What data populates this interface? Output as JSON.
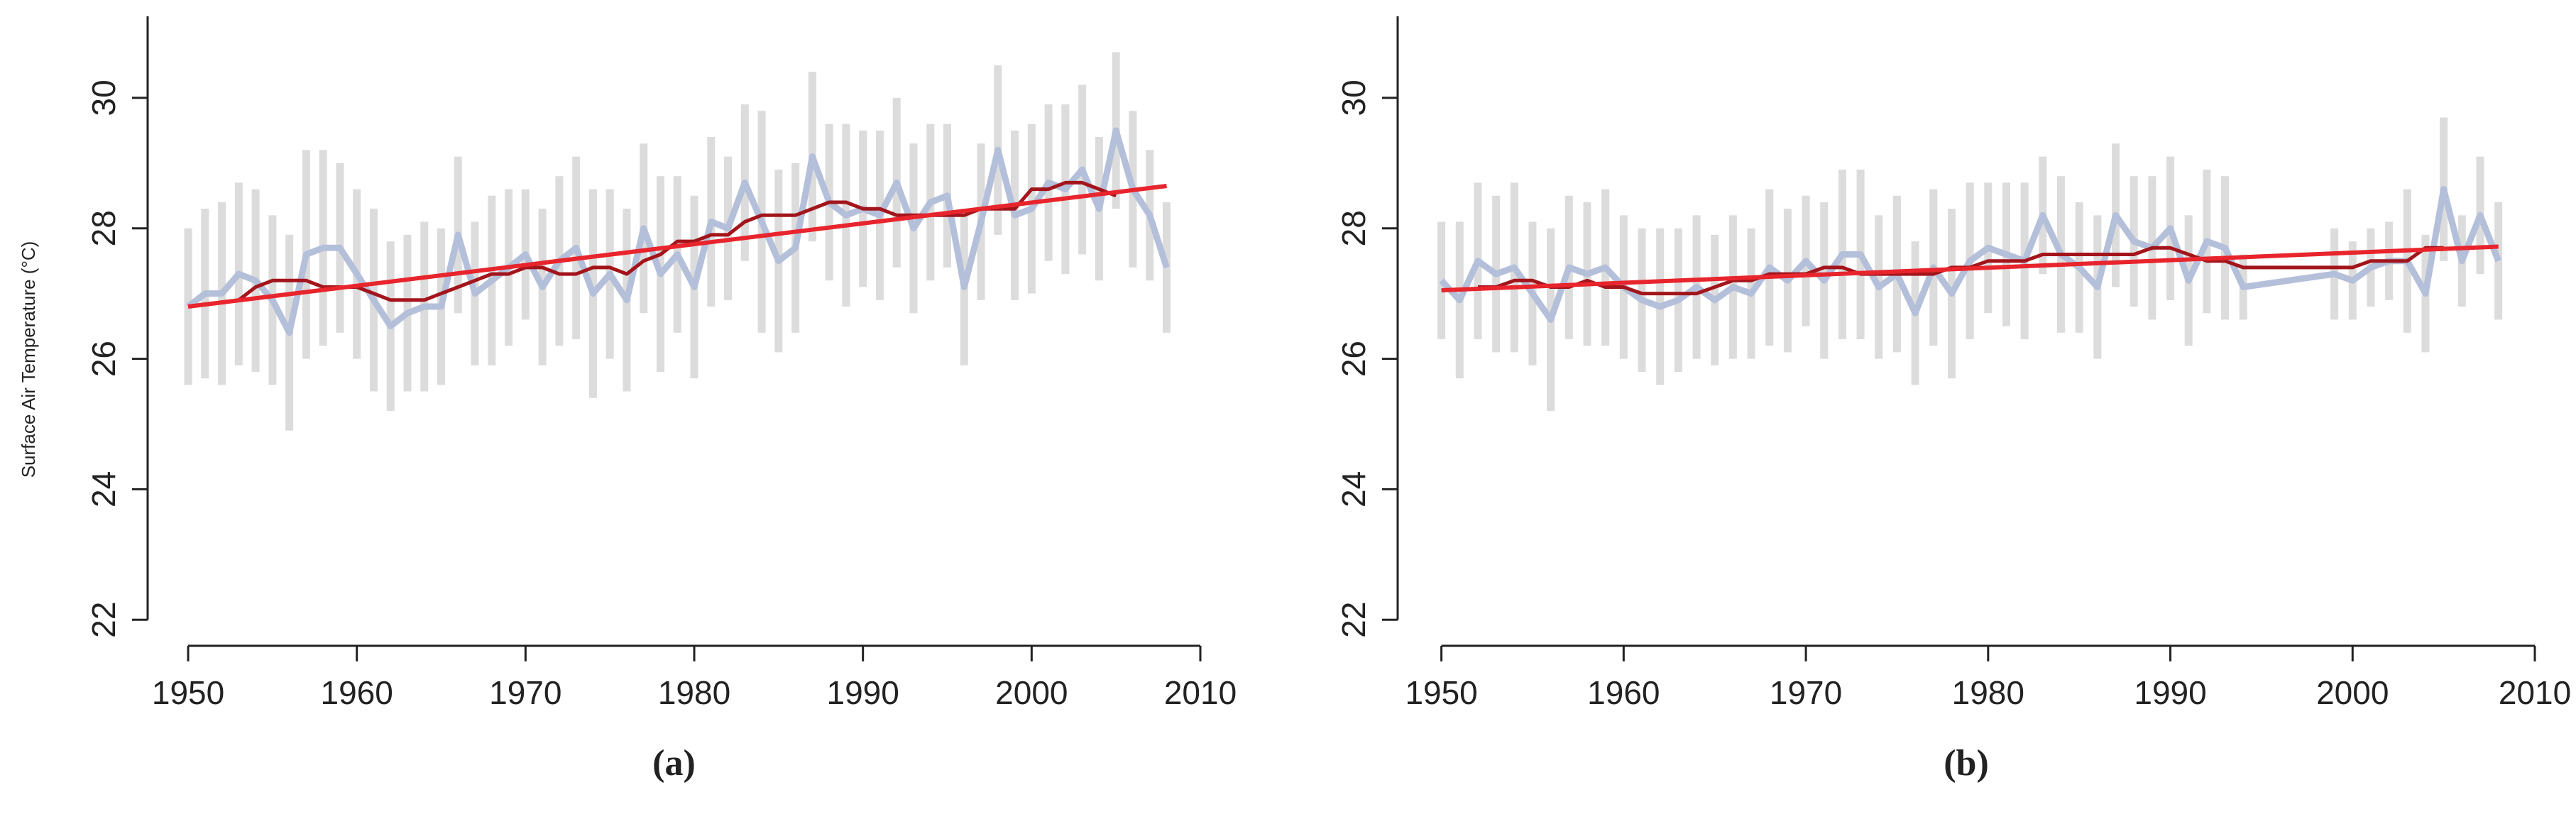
{
  "chart_data": [
    {
      "type": "line",
      "caption": "(a)",
      "ylabel": "Surface Air Temperature (°C)",
      "xlim": [
        1947.6,
        2010
      ],
      "ylim": [
        21.6,
        31.25
      ],
      "xticks": [
        1950,
        1960,
        1970,
        1980,
        1990,
        2000,
        2010
      ],
      "yticks": [
        22,
        24,
        26,
        28,
        30
      ],
      "x": [
        1950,
        1951,
        1952,
        1953,
        1954,
        1955,
        1956,
        1957,
        1958,
        1959,
        1960,
        1961,
        1962,
        1963,
        1964,
        1965,
        1966,
        1967,
        1968,
        1969,
        1970,
        1971,
        1972,
        1973,
        1974,
        1975,
        1976,
        1977,
        1978,
        1979,
        1980,
        1981,
        1982,
        1983,
        1984,
        1985,
        1986,
        1987,
        1988,
        1989,
        1990,
        1991,
        1992,
        1993,
        1994,
        1995,
        1996,
        1997,
        1998,
        1999,
        2000,
        2001,
        2002,
        2003,
        2004,
        2005,
        2006,
        2007,
        2008
      ],
      "series": [
        {
          "color": "#b4bfda",
          "error_color": "#dcdcdc",
          "values": [
            26.8,
            27.0,
            27.0,
            27.3,
            27.2,
            26.9,
            26.4,
            27.6,
            27.7,
            27.7,
            27.3,
            26.9,
            26.5,
            26.7,
            26.8,
            26.8,
            27.9,
            27.0,
            27.2,
            27.4,
            27.6,
            27.1,
            27.5,
            27.7,
            27.0,
            27.3,
            26.9,
            28.0,
            27.3,
            27.6,
            27.1,
            28.1,
            28.0,
            28.7,
            28.1,
            27.5,
            27.7,
            29.1,
            28.4,
            28.2,
            28.3,
            28.2,
            28.7,
            28.0,
            28.4,
            28.5,
            27.1,
            28.1,
            29.2,
            28.2,
            28.3,
            28.7,
            28.6,
            28.9,
            28.3,
            29.5,
            28.6,
            28.2,
            27.4
          ],
          "errors": [
            1.2,
            1.3,
            1.4,
            1.4,
            1.4,
            1.3,
            1.5,
            1.6,
            1.5,
            1.3,
            1.3,
            1.4,
            1.3,
            1.2,
            1.3,
            1.2,
            1.2,
            1.1,
            1.3,
            1.2,
            1.0,
            1.2,
            1.3,
            1.4,
            1.6,
            1.3,
            1.4,
            1.3,
            1.5,
            1.2,
            1.4,
            1.3,
            1.1,
            1.2,
            1.7,
            1.4,
            1.3,
            1.3,
            1.2,
            1.4,
            1.2,
            1.3,
            1.3,
            1.3,
            1.2,
            1.1,
            1.2,
            1.2,
            1.3,
            1.3,
            1.3,
            1.2,
            1.3,
            1.3,
            1.1,
            1.2,
            1.2,
            1.0,
            1.0
          ]
        },
        {
          "color": "#a3151b",
          "values": [
            null,
            null,
            null,
            26.9,
            27.1,
            27.2,
            27.2,
            27.2,
            27.1,
            27.1,
            27.1,
            27.0,
            26.9,
            26.9,
            26.9,
            27.0,
            27.1,
            27.2,
            27.3,
            27.3,
            27.4,
            27.4,
            27.3,
            27.3,
            27.4,
            27.4,
            27.3,
            27.5,
            27.6,
            27.8,
            27.8,
            27.9,
            27.9,
            28.1,
            28.2,
            28.2,
            28.2,
            28.3,
            28.4,
            28.4,
            28.3,
            28.3,
            28.2,
            28.2,
            28.2,
            28.2,
            28.2,
            28.3,
            28.3,
            28.3,
            28.6,
            28.6,
            28.7,
            28.7,
            28.6,
            28.5,
            null,
            null,
            null
          ]
        },
        {
          "color": "#e8242c",
          "x": [
            1950,
            2008
          ],
          "values": [
            26.8,
            28.65
          ]
        }
      ]
    },
    {
      "type": "line",
      "caption": "(b)",
      "xlim": [
        1947.6,
        2010
      ],
      "ylim": [
        21.6,
        31.25
      ],
      "xticks": [
        1950,
        1960,
        1970,
        1980,
        1990,
        2000,
        2010
      ],
      "yticks": [
        22,
        24,
        26,
        28,
        30
      ],
      "x": [
        1950,
        1951,
        1952,
        1953,
        1954,
        1955,
        1956,
        1957,
        1958,
        1959,
        1960,
        1961,
        1962,
        1963,
        1964,
        1965,
        1966,
        1967,
        1968,
        1969,
        1970,
        1971,
        1972,
        1973,
        1974,
        1975,
        1976,
        1977,
        1978,
        1979,
        1980,
        1981,
        1982,
        1983,
        1984,
        1985,
        1986,
        1987,
        1988,
        1989,
        1990,
        1991,
        1992,
        1993,
        1994,
        1999,
        2000,
        2001,
        2002,
        2003,
        2004,
        2005,
        2006,
        2007,
        2008
      ],
      "series": [
        {
          "color": "#b4bfda",
          "error_color": "#dcdcdc",
          "values": [
            27.2,
            26.9,
            27.5,
            27.3,
            27.4,
            27.0,
            26.6,
            27.4,
            27.3,
            27.4,
            27.1,
            26.9,
            26.8,
            26.9,
            27.1,
            26.9,
            27.1,
            27.0,
            27.4,
            27.2,
            27.5,
            27.2,
            27.6,
            27.6,
            27.1,
            27.3,
            26.7,
            27.4,
            27.0,
            27.5,
            27.7,
            27.6,
            27.5,
            28.2,
            27.6,
            27.4,
            27.1,
            28.2,
            27.8,
            27.7,
            28.0,
            27.2,
            27.8,
            27.7,
            27.1,
            27.3,
            27.2,
            27.4,
            27.5,
            27.5,
            27.0,
            28.6,
            27.5,
            28.2,
            27.5
          ],
          "errors": [
            0.9,
            1.2,
            1.2,
            1.2,
            1.3,
            1.1,
            1.4,
            1.1,
            1.1,
            1.2,
            1.1,
            1.1,
            1.2,
            1.1,
            1.1,
            1.0,
            1.1,
            1.0,
            1.2,
            1.1,
            1.0,
            1.2,
            1.3,
            1.3,
            1.1,
            1.2,
            1.1,
            1.2,
            1.3,
            1.2,
            1.0,
            1.1,
            1.2,
            0.9,
            1.2,
            1.0,
            1.1,
            1.1,
            1.0,
            1.1,
            1.1,
            1.0,
            1.1,
            1.1,
            0.5,
            0.7,
            0.6,
            0.6,
            0.6,
            1.1,
            0.9,
            1.1,
            0.7,
            0.9,
            0.9
          ]
        },
        {
          "color": "#a3151b",
          "values": [
            null,
            null,
            27.1,
            27.1,
            27.2,
            27.2,
            27.1,
            27.1,
            27.2,
            27.1,
            27.1,
            27.0,
            27.0,
            27.0,
            27.0,
            27.1,
            27.2,
            27.2,
            27.3,
            27.3,
            27.3,
            27.4,
            27.4,
            27.3,
            27.3,
            27.3,
            27.3,
            27.3,
            27.4,
            27.4,
            27.5,
            27.5,
            27.5,
            27.6,
            27.6,
            27.6,
            27.6,
            27.6,
            27.6,
            27.7,
            27.7,
            27.6,
            27.5,
            27.5,
            27.4,
            27.4,
            27.4,
            27.5,
            27.5,
            27.5,
            27.7,
            27.7,
            null,
            null,
            null
          ]
        },
        {
          "color": "#e8242c",
          "x": [
            1950,
            2008
          ],
          "values": [
            27.05,
            27.72
          ]
        }
      ]
    }
  ]
}
